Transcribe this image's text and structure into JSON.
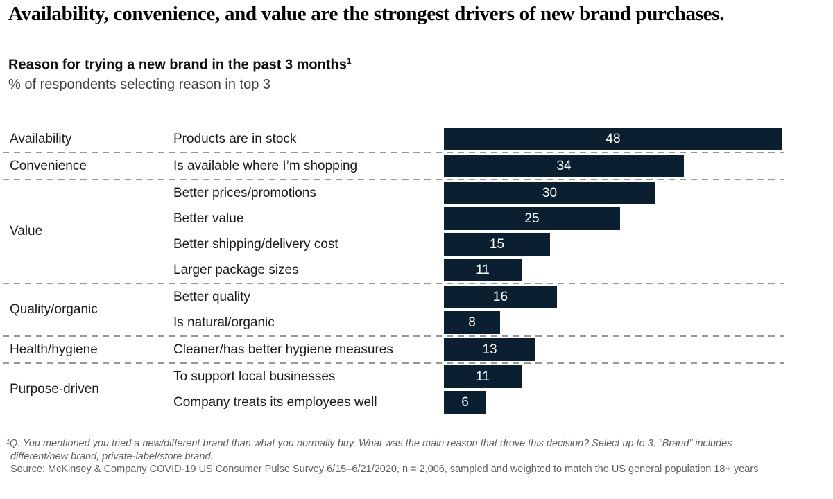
{
  "page": {
    "title": "Availability, convenience, and value are the strongest drivers of new brand purchases.",
    "colors": {
      "bar_fill": "#0a2030",
      "bar_value_text": "#ffffff",
      "divider": "#979797",
      "title_text": "#000000",
      "subheading_text": "#404040",
      "footnote_text": "#5e5e5e",
      "background": "#ffffff"
    }
  },
  "chart_header": {
    "heading": "Reason for trying a new brand in the past 3 months",
    "heading_superscript": "1",
    "subheading": "% of respondents selecting reason in top 3"
  },
  "chart_data": {
    "type": "bar",
    "orientation": "horizontal",
    "title": "Reason for trying a new brand in the past 3 months",
    "unit": "% of respondents selecting reason in top 3",
    "xlim": [
      0,
      48
    ],
    "grid": false,
    "legend": "none",
    "value_labels_position": "inside-center",
    "groups": [
      {
        "category": "Availability",
        "items": [
          {
            "label": "Products are in stock",
            "value": 48
          }
        ]
      },
      {
        "category": "Convenience",
        "items": [
          {
            "label": "Is available where I’m shopping",
            "value": 34
          }
        ]
      },
      {
        "category": "Value",
        "items": [
          {
            "label": "Better prices/promotions",
            "value": 30
          },
          {
            "label": "Better value",
            "value": 25
          },
          {
            "label": "Better shipping/delivery cost",
            "value": 15
          },
          {
            "label": "Larger package sizes",
            "value": 11
          }
        ]
      },
      {
        "category": "Quality/organic",
        "items": [
          {
            "label": "Better quality",
            "value": 16
          },
          {
            "label": "Is natural/organic",
            "value": 8
          }
        ]
      },
      {
        "category": "Health/hygiene",
        "items": [
          {
            "label": "Cleaner/has better hygiene measures",
            "value": 13
          }
        ]
      },
      {
        "category": "Purpose-driven",
        "items": [
          {
            "label": "To support local businesses",
            "value": 11
          },
          {
            "label": "Company treats its employees well",
            "value": 6
          }
        ]
      }
    ]
  },
  "footnotes": {
    "note": "¹Q: You mentioned you tried a new/different brand than what you normally buy. What was the main reason that drove this decision? Select up to 3. “Brand” includes different/new brand, private-label/store brand.",
    "source": "Source: McKinsey & Company COVID-19 US Consumer Pulse Survey 6/15–6/21/2020, n = 2,006, sampled and weighted to match the US general population 18+ years"
  }
}
